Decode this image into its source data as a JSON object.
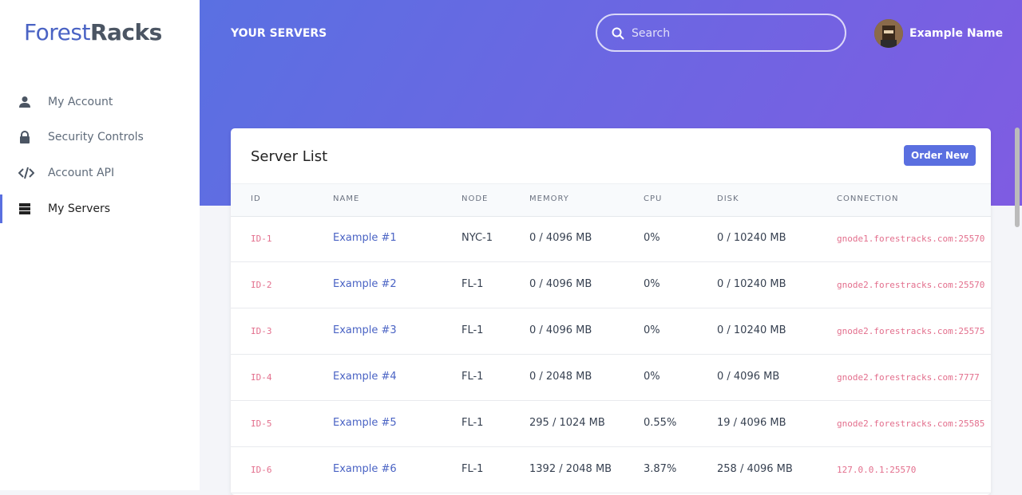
{
  "logo": {
    "part1": "Forest",
    "part2": "Racks"
  },
  "nav": [
    {
      "label": "My Account"
    },
    {
      "label": "Security Controls"
    },
    {
      "label": "Account API"
    },
    {
      "label": "My Servers"
    }
  ],
  "header": {
    "title": "YOUR SERVERS",
    "search_placeholder": "Search",
    "user_name": "Example Name"
  },
  "card": {
    "title": "Server List",
    "button": "Order New"
  },
  "table": {
    "columns": [
      "ID",
      "NAME",
      "NODE",
      "MEMORY",
      "CPU",
      "DISK",
      "CONNECTION"
    ],
    "rows": [
      [
        "ID-1",
        "Example #1",
        "NYC-1",
        "0 / 4096 MB",
        "0%",
        "0 / 10240 MB",
        "gnode1.forestracks.com:25570"
      ],
      [
        "ID-2",
        "Example #2",
        "FL-1",
        "0 / 4096 MB",
        "0%",
        "0 / 10240 MB",
        "gnode2.forestracks.com:25570"
      ],
      [
        "ID-3",
        "Example #3",
        "FL-1",
        "0 / 4096 MB",
        "0%",
        "0 / 10240 MB",
        "gnode2.forestracks.com:25575"
      ],
      [
        "ID-4",
        "Example #4",
        "FL-1",
        "0 / 2048 MB",
        "0%",
        "0 / 4096 MB",
        "gnode2.forestracks.com:7777"
      ],
      [
        "ID-5",
        "Example #5",
        "FL-1",
        "295 / 1024 MB",
        "0.55%",
        "19 / 4096 MB",
        "gnode2.forestracks.com:25585"
      ],
      [
        "ID-6",
        "Example #6",
        "FL-1",
        "1392 / 2048 MB",
        "3.87%",
        "258 / 4096 MB",
        "127.0.0.1:25570"
      ]
    ]
  }
}
